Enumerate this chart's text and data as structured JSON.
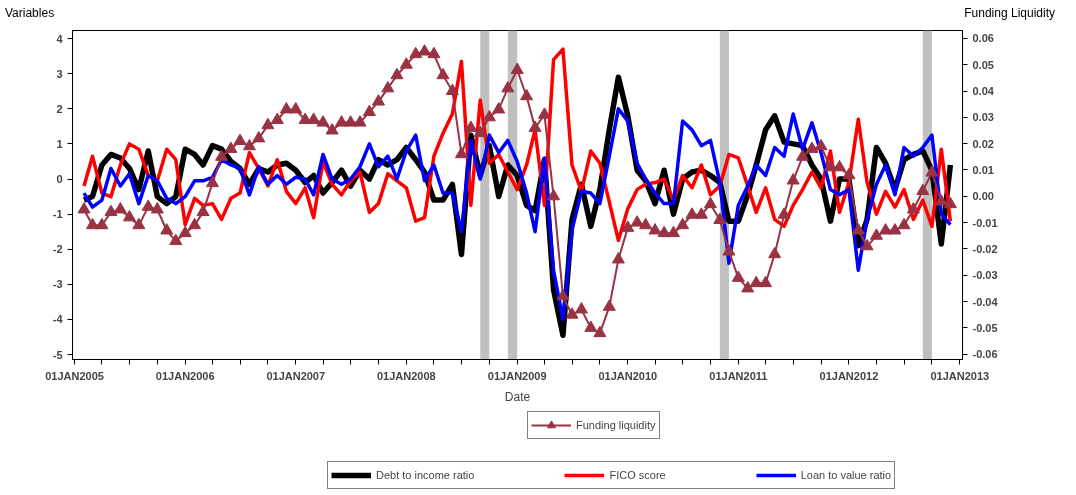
{
  "chart_data": {
    "type": "line",
    "xlabel": "Date",
    "ylabel": "Variables",
    "y2label": "Funding Liquidity",
    "x": [
      "2005-02",
      "2005-03",
      "2005-04",
      "2005-05",
      "2005-06",
      "2005-07",
      "2005-08",
      "2005-09",
      "2005-10",
      "2005-11",
      "2005-12",
      "2006-01",
      "2006-02",
      "2006-03",
      "2006-04",
      "2006-05",
      "2006-06",
      "2006-07",
      "2006-08",
      "2006-09",
      "2006-10",
      "2006-11",
      "2006-12",
      "2007-01",
      "2007-02",
      "2007-03",
      "2007-04",
      "2007-05",
      "2007-06",
      "2007-07",
      "2007-08",
      "2007-09",
      "2007-10",
      "2007-11",
      "2007-12",
      "2008-01",
      "2008-02",
      "2008-03",
      "2008-04",
      "2008-05",
      "2008-06",
      "2008-07",
      "2008-08",
      "2008-09",
      "2008-10",
      "2008-11",
      "2008-12",
      "2009-01",
      "2009-02",
      "2009-03",
      "2009-04",
      "2009-05",
      "2009-06",
      "2009-07",
      "2009-08",
      "2009-09",
      "2009-10",
      "2009-11",
      "2009-12",
      "2010-01",
      "2010-02",
      "2010-03",
      "2010-04",
      "2010-05",
      "2010-06",
      "2010-07",
      "2010-08",
      "2010-09",
      "2010-10",
      "2010-11",
      "2010-12",
      "2011-01",
      "2011-02",
      "2011-03",
      "2011-04",
      "2011-05",
      "2011-06",
      "2011-07",
      "2011-08",
      "2011-09",
      "2011-10",
      "2011-11",
      "2011-12",
      "2012-01",
      "2012-02",
      "2012-03",
      "2012-04",
      "2012-05",
      "2012-06",
      "2012-07",
      "2012-08",
      "2012-09",
      "2012-10",
      "2012-11",
      "2012-12"
    ],
    "series": [
      {
        "name": "Debt to income ratio",
        "color": "#000000",
        "values": [
          -0.6,
          -0.5,
          0.4,
          0.7,
          0.6,
          0.3,
          -0.3,
          0.8,
          -0.5,
          -0.7,
          -0.5,
          0.85,
          0.7,
          0.4,
          0.95,
          0.85,
          0.5,
          0.3,
          -0.15,
          0.3,
          0.2,
          0.4,
          0.45,
          0.25,
          -0.1,
          0.1,
          -0.4,
          -0.1,
          0.25,
          -0.2,
          0.25,
          0.0,
          0.55,
          0.4,
          0.55,
          0.9,
          0.55,
          0.2,
          -0.6,
          -0.6,
          -0.15,
          -2.15,
          1.25,
          0.1,
          0.95,
          -0.5,
          0.4,
          0.1,
          -0.75,
          -0.9,
          0.55,
          -3.15,
          -4.45,
          -1.15,
          -0.15,
          -1.35,
          -0.3,
          1.4,
          2.9,
          1.8,
          0.25,
          -0.05,
          -0.7,
          0.25,
          -1.0,
          0.0,
          0.2,
          0.25,
          0.1,
          -0.1,
          -1.2,
          -1.2,
          -0.45,
          0.4,
          1.4,
          1.8,
          1.05,
          1.0,
          0.95,
          0.4,
          0.0,
          -1.2,
          0.0,
          0.0,
          -1.9,
          -1.15,
          0.9,
          0.45,
          -0.3,
          0.55,
          0.7,
          0.8,
          0.25,
          -1.85,
          0.4
        ]
      },
      {
        "name": "FICO score",
        "color": "#ff0000",
        "values": [
          -0.2,
          0.65,
          -0.4,
          -0.5,
          0.4,
          1.0,
          0.85,
          0.1,
          -0.05,
          0.85,
          0.55,
          -1.3,
          -0.55,
          -0.75,
          -0.7,
          -1.15,
          -0.55,
          -0.4,
          0.75,
          0.3,
          -0.2,
          0.55,
          -0.35,
          -0.7,
          -0.25,
          -1.1,
          0.5,
          -0.15,
          -0.45,
          -0.05,
          0.2,
          -0.95,
          -0.7,
          0.15,
          -0.05,
          -0.25,
          -1.2,
          -1.1,
          0.65,
          1.3,
          1.85,
          3.35,
          -0.75,
          2.25,
          0.45,
          0.7,
          0.2,
          -0.3,
          0.4,
          1.4,
          -0.75,
          3.4,
          3.7,
          0.4,
          -0.35,
          0.8,
          0.45,
          -0.65,
          -1.75,
          -0.85,
          -0.3,
          -0.15,
          -0.1,
          0.0,
          -0.6,
          0.1,
          -0.25,
          0.4,
          -0.45,
          -0.2,
          0.7,
          0.6,
          -0.2,
          -0.95,
          -0.25,
          -1.15,
          -1.35,
          -0.75,
          -0.3,
          0.2,
          -0.25,
          0.8,
          -0.95,
          -0.1,
          1.7,
          -0.1,
          -1.0,
          -0.35,
          -0.8,
          -0.3,
          -1.15,
          -0.6,
          -1.35,
          0.85,
          -1.2
        ]
      },
      {
        "name": "Loan to value ratio",
        "color": "#0000ff",
        "values": [
          -0.4,
          -0.8,
          -0.6,
          0.3,
          -0.2,
          0.15,
          -0.7,
          0.1,
          -0.05,
          -0.55,
          -0.7,
          -0.5,
          -0.05,
          -0.05,
          0.05,
          0.55,
          0.4,
          0.3,
          -0.45,
          0.35,
          -0.15,
          0.1,
          -0.15,
          0.05,
          0.0,
          -0.45,
          0.7,
          0.0,
          -0.15,
          0.0,
          0.35,
          1.0,
          0.35,
          0.65,
          0.0,
          0.8,
          1.25,
          -0.05,
          0.4,
          -0.4,
          -0.4,
          -1.5,
          1.1,
          0.0,
          1.25,
          0.75,
          1.1,
          0.5,
          -0.4,
          -1.5,
          0.6,
          -2.6,
          -4.0,
          -1.45,
          -0.35,
          -0.4,
          -0.7,
          0.65,
          2.0,
          1.65,
          0.45,
          0.0,
          -0.4,
          -0.7,
          -0.7,
          1.65,
          1.4,
          0.95,
          1.1,
          -0.1,
          -2.4,
          -0.75,
          -0.2,
          0.4,
          0.1,
          0.9,
          0.65,
          1.85,
          0.85,
          1.6,
          0.75,
          -0.3,
          -0.45,
          -0.3,
          -2.6,
          -1.15,
          -0.15,
          0.4,
          -0.45,
          0.9,
          0.65,
          0.9,
          1.25,
          -1.0,
          -1.3
        ]
      },
      {
        "name": "Funding liquidity",
        "color": "#993344",
        "axis": "y2",
        "marker": "triangle",
        "values": [
          -0.005,
          -0.011,
          -0.011,
          -0.006,
          -0.005,
          -0.008,
          -0.011,
          -0.004,
          -0.005,
          -0.013,
          -0.017,
          -0.014,
          -0.011,
          -0.006,
          0.005,
          0.015,
          0.018,
          0.021,
          0.019,
          0.022,
          0.027,
          0.029,
          0.033,
          0.033,
          0.029,
          0.029,
          0.028,
          0.025,
          0.028,
          0.028,
          0.028,
          0.032,
          0.036,
          0.041,
          0.046,
          0.05,
          0.054,
          0.055,
          0.054,
          0.046,
          0.04,
          0.016,
          0.026,
          0.024,
          0.03,
          0.033,
          0.041,
          0.048,
          0.038,
          0.026,
          0.031,
          0.0,
          -0.038,
          -0.045,
          -0.043,
          -0.05,
          -0.052,
          -0.042,
          -0.024,
          -0.012,
          -0.01,
          -0.011,
          -0.013,
          -0.014,
          -0.014,
          -0.011,
          -0.007,
          -0.007,
          -0.003,
          -0.009,
          -0.021,
          -0.031,
          -0.035,
          -0.033,
          -0.033,
          -0.022,
          -0.007,
          0.006,
          0.015,
          0.018,
          0.019,
          0.011,
          0.011,
          0.008,
          -0.013,
          -0.019,
          -0.015,
          -0.013,
          -0.013,
          -0.011,
          -0.005,
          0.002,
          0.009,
          -0.002,
          -0.003
        ]
      }
    ],
    "xlim": [
      "2004-12-25",
      "2013-01-10"
    ],
    "xticks": [
      {
        "value": "2005-01",
        "label": "01JAN2005"
      },
      {
        "value": "2005-04",
        "label": null
      },
      {
        "value": "2005-07",
        "label": null
      },
      {
        "value": "2005-10",
        "label": null
      },
      {
        "value": "2006-01",
        "label": "01JAN2006"
      },
      {
        "value": "2006-04",
        "label": null
      },
      {
        "value": "2006-07",
        "label": null
      },
      {
        "value": "2006-10",
        "label": null
      },
      {
        "value": "2007-01",
        "label": "01JAN2007"
      },
      {
        "value": "2007-04",
        "label": null
      },
      {
        "value": "2007-07",
        "label": null
      },
      {
        "value": "2007-10",
        "label": null
      },
      {
        "value": "2008-01",
        "label": "01JAN2008"
      },
      {
        "value": "2008-04",
        "label": null
      },
      {
        "value": "2008-07",
        "label": null
      },
      {
        "value": "2008-10",
        "label": null
      },
      {
        "value": "2009-01",
        "label": "01JAN2009"
      },
      {
        "value": "2009-04",
        "label": null
      },
      {
        "value": "2009-07",
        "label": null
      },
      {
        "value": "2009-10",
        "label": null
      },
      {
        "value": "2010-01",
        "label": "01JAN2010"
      },
      {
        "value": "2010-04",
        "label": null
      },
      {
        "value": "2010-07",
        "label": null
      },
      {
        "value": "2010-10",
        "label": null
      },
      {
        "value": "2011-01",
        "label": "01JAN2011"
      },
      {
        "value": "2011-04",
        "label": null
      },
      {
        "value": "2011-07",
        "label": null
      },
      {
        "value": "2011-10",
        "label": null
      },
      {
        "value": "2012-01",
        "label": "01JAN2012"
      },
      {
        "value": "2012-04",
        "label": null
      },
      {
        "value": "2012-07",
        "label": null
      },
      {
        "value": "2012-10",
        "label": null
      },
      {
        "value": "2013-01",
        "label": "01JAN2013"
      }
    ],
    "ylim": [
      -5.14,
      4.23
    ],
    "yticks": [
      -5,
      -4,
      -3,
      -2,
      -1,
      0,
      1,
      2,
      3,
      4
    ],
    "y2lim": [
      -0.062,
      0.063
    ],
    "y2ticks": [
      -0.06,
      -0.05,
      -0.04,
      -0.03,
      -0.02,
      -0.01,
      {
        "value": 0,
        "label": "0.00"
      },
      0.01,
      0.02,
      0.03,
      0.04,
      0.05,
      0.06
    ],
    "bands": [
      {
        "axis": "x",
        "from": "2008-09",
        "to": "2008-10",
        "color": "#c0c0c0"
      },
      {
        "axis": "x",
        "from": "2008-12",
        "to": "2009-01",
        "color": "#c0c0c0"
      },
      {
        "axis": "x",
        "from": "2010-11",
        "to": "2010-12",
        "color": "#c0c0c0"
      },
      {
        "axis": "x",
        "from": "2012-09",
        "to": "2012-10",
        "color": "#c0c0c0"
      }
    ],
    "legend": "bottom"
  }
}
